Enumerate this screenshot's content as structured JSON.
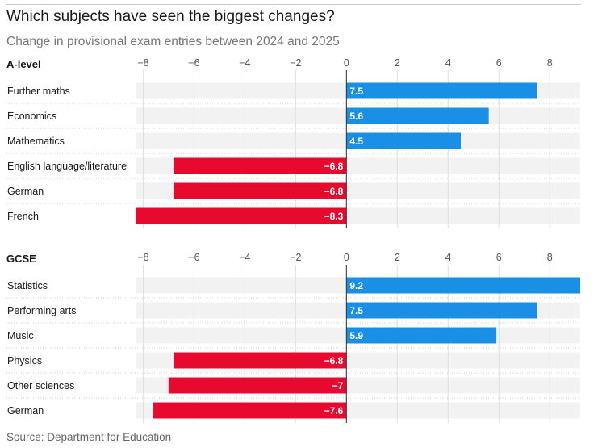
{
  "title": "Which subjects have seen the biggest changes?",
  "subtitle": "Change in provisional exam entries between 2024 and 2025",
  "source": "Source: Department for Education",
  "colors": {
    "positive": "#1a8fe6",
    "negative": "#e8092e",
    "row_bg": "#f2f2f2",
    "grid": "#e0e0e0"
  },
  "chart_data": [
    {
      "type": "bar",
      "orientation": "horizontal",
      "panel": "A-level",
      "xlim": [
        -8.3,
        9.2
      ],
      "ticks": [
        -8,
        -6,
        -4,
        -2,
        0,
        2,
        4,
        6,
        8
      ],
      "tick_labels": [
        "−8",
        "−6",
        "−4",
        "−2",
        "0",
        "2",
        "4",
        "6",
        "8"
      ],
      "categories": [
        "Further maths",
        "Economics",
        "Mathematics",
        "English language/literature",
        "German",
        "French"
      ],
      "values": [
        7.5,
        5.6,
        4.5,
        -6.8,
        -6.8,
        -8.3
      ],
      "value_labels": [
        "7.5",
        "5.6",
        "4.5",
        "−6.8",
        "−6.8",
        "−8.3"
      ]
    },
    {
      "type": "bar",
      "orientation": "horizontal",
      "panel": "GCSE",
      "xlim": [
        -8.3,
        9.2
      ],
      "ticks": [
        -8,
        -6,
        -4,
        -2,
        0,
        2,
        4,
        6,
        8
      ],
      "tick_labels": [
        "−8",
        "−6",
        "−4",
        "−2",
        "0",
        "2",
        "4",
        "6",
        "8"
      ],
      "categories": [
        "Statistics",
        "Performing arts",
        "Music",
        "Physics",
        "Other sciences",
        "German"
      ],
      "values": [
        9.2,
        7.5,
        5.9,
        -6.8,
        -7,
        -7.6
      ],
      "value_labels": [
        "9.2",
        "7.5",
        "5.9",
        "−6.8",
        "−7",
        "−7.6"
      ]
    }
  ]
}
